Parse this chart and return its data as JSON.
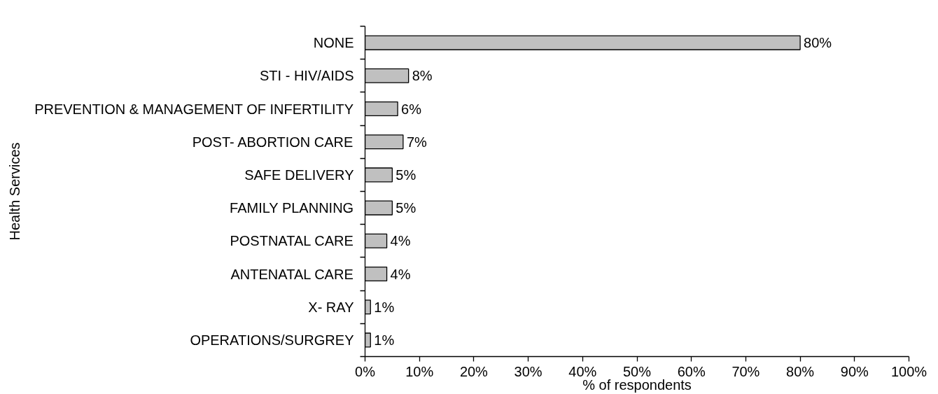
{
  "chart_data": {
    "type": "bar",
    "orientation": "horizontal",
    "categories": [
      "NONE",
      "STI - HIV/AIDS",
      "PREVENTION & MANAGEMENT OF INFERTILITY",
      "POST- ABORTION CARE",
      "SAFE DELIVERY",
      "FAMILY PLANNING",
      "POSTNATAL CARE",
      "ANTENATAL CARE",
      "X- RAY",
      "OPERATIONS/SURGREY"
    ],
    "values": [
      80,
      8,
      6,
      7,
      5,
      5,
      4,
      4,
      1,
      1
    ],
    "value_labels": [
      "80%",
      "8%",
      "6%",
      "7%",
      "5%",
      "5%",
      "4%",
      "4%",
      "1%",
      "1%"
    ],
    "color": "#c0c0c0",
    "xlabel": "% of respondents",
    "ylabel": "Health Services",
    "xlim": [
      0,
      100
    ],
    "xticks": [
      {
        "value": 0,
        "label": "0%"
      },
      {
        "value": 10,
        "label": "10%"
      },
      {
        "value": 20,
        "label": "20%"
      },
      {
        "value": 30,
        "label": "30%"
      },
      {
        "value": 40,
        "label": "40%"
      },
      {
        "value": 50,
        "label": "50%"
      },
      {
        "value": 60,
        "label": "60%"
      },
      {
        "value": 70,
        "label": "70%"
      },
      {
        "value": 80,
        "label": "80%"
      },
      {
        "value": 90,
        "label": "90%"
      },
      {
        "value": 100,
        "label": "100%"
      }
    ],
    "grid": false
  }
}
